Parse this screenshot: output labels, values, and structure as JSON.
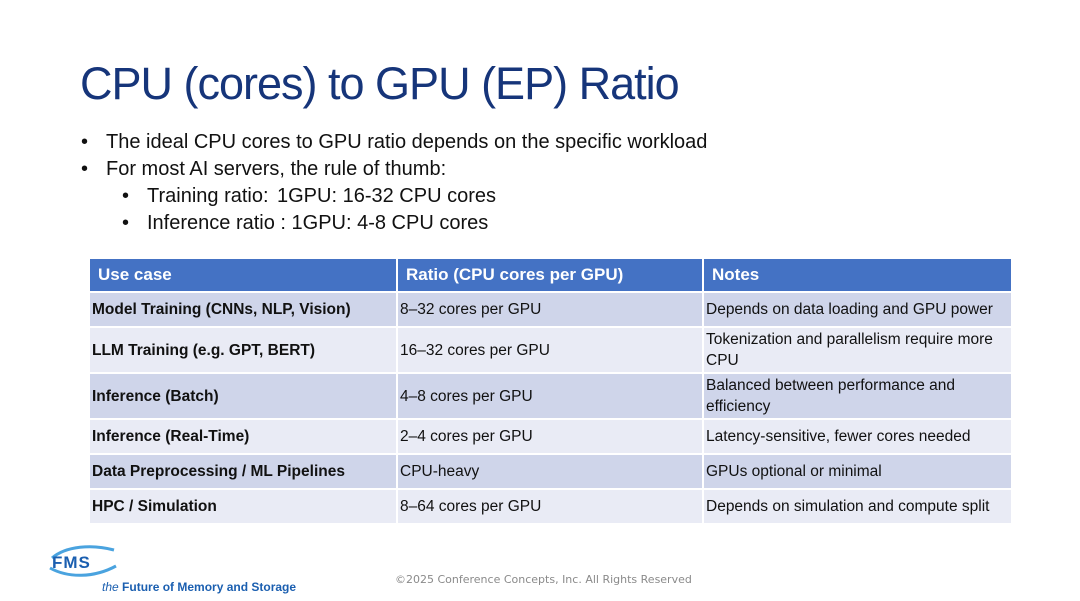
{
  "title": "CPU (cores) to GPU (EP) Ratio",
  "bullets": [
    {
      "text": "The ideal CPU cores to GPU ratio depends on the specific workload"
    },
    {
      "text": "For most AI servers, the rule of thumb:"
    }
  ],
  "sub_bullets": [
    {
      "label": "Training ratio:",
      "value": "1GPU: 16-32 CPU cores"
    },
    {
      "label": "Inference ratio : 1GPU: 4-8 CPU cores"
    }
  ],
  "table": {
    "headers": [
      "Use case",
      "Ratio (CPU cores per GPU)",
      "Notes"
    ],
    "rows": [
      [
        "Model Training (CNNs, NLP, Vision)",
        "8–32 cores per GPU",
        "Depends on data loading and GPU power"
      ],
      [
        "LLM Training (e.g. GPT, BERT)",
        "16–32 cores per GPU",
        "Tokenization and parallelism require more CPU"
      ],
      [
        "Inference (Batch)",
        "4–8 cores per GPU",
        "Balanced between performance and efficiency"
      ],
      [
        "Inference (Real-Time)",
        "2–4 cores per GPU",
        "Latency-sensitive, fewer cores needed"
      ],
      [
        "Data Preprocessing / ML Pipelines",
        "CPU-heavy",
        "GPUs optional or minimal"
      ],
      [
        "HPC / Simulation",
        "8–64 cores per GPU",
        "Depends on simulation and compute split"
      ]
    ]
  },
  "logo": {
    "text": "FMS",
    "tagline_prefix": "the",
    "tagline_main": "Future of Memory and Storage",
    "colors": {
      "primary": "#1b5fb0",
      "accent": "#4aa3df"
    }
  },
  "footer": "©2025 Conference Concepts, Inc. All Rights Reserved",
  "colors": {
    "title": "#16357a",
    "header_bg": "#4472c4",
    "row_odd": "#cfd5ea",
    "row_even": "#e9ebf5"
  }
}
